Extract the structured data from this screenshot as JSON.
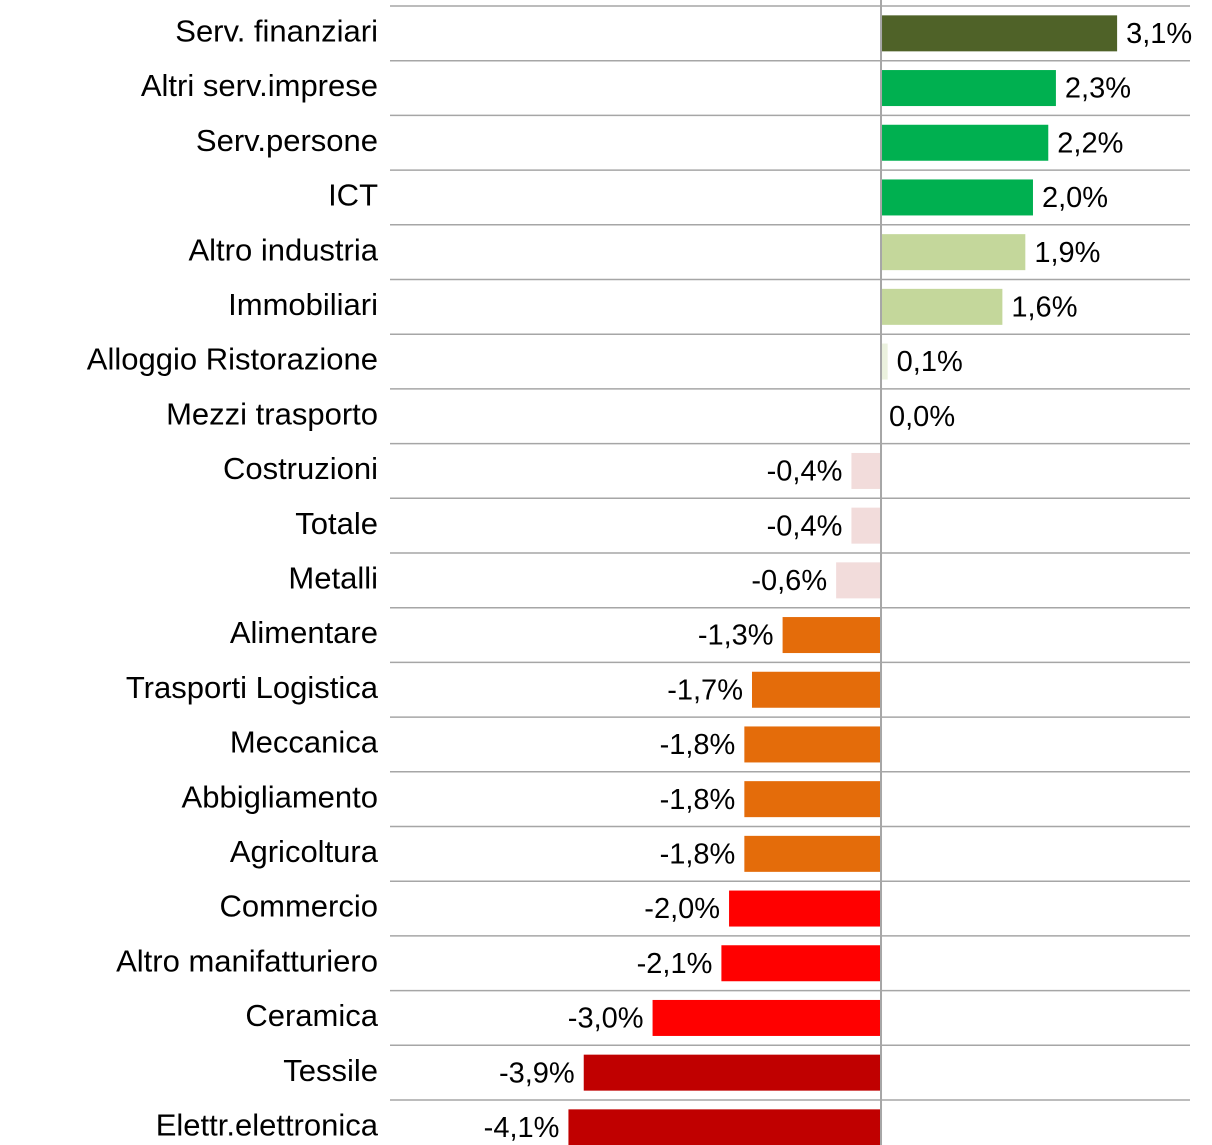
{
  "chart_data": {
    "type": "barh",
    "categories": [
      "Serv. finanziari",
      "Altri serv.imprese",
      "Serv.persone",
      "ICT",
      "Altro industria",
      "Immobiliari",
      "Alloggio Ristorazione",
      "Mezzi trasporto",
      "Costruzioni",
      "Totale",
      "Metalli",
      "Alimentare",
      "Trasporti  Logistica",
      "Meccanica",
      "Abbigliamento",
      "Agricoltura",
      "Commercio",
      "Altro manifatturiero",
      "Ceramica",
      "Tessile",
      "Elettr.elettronica"
    ],
    "values": [
      3.1,
      2.3,
      2.2,
      2.0,
      1.9,
      1.6,
      0.1,
      0.0,
      -0.4,
      -0.4,
      -0.6,
      -1.3,
      -1.7,
      -1.8,
      -1.8,
      -1.8,
      -2.0,
      -2.1,
      -3.0,
      -3.9,
      -4.1
    ],
    "value_labels": [
      "3,1%",
      "2,3%",
      "2,2%",
      "2,0%",
      "1,9%",
      "1,6%",
      "0,1%",
      "0,0%",
      "-0,4%",
      "-0,4%",
      "-0,6%",
      "-1,3%",
      "-1,7%",
      "-1,8%",
      "-1,8%",
      "-1,8%",
      "-2,0%",
      "-2,1%",
      "-3,0%",
      "-3,9%",
      "-4,1%"
    ],
    "colors": [
      "#4f6228",
      "#00b050",
      "#00b050",
      "#00b050",
      "#c4d79b",
      "#c4d79b",
      "#ebf1de",
      "#ebf1de",
      "#f2dcdb",
      "#f2dcdb",
      "#f2dcdb",
      "#e46c0a",
      "#e46c0a",
      "#e46c0a",
      "#e46c0a",
      "#e46c0a",
      "#ff0000",
      "#ff0000",
      "#ff0000",
      "#c00000",
      "#c00000"
    ],
    "xlim": [
      -6.42,
      4.04
    ],
    "grid": true
  }
}
